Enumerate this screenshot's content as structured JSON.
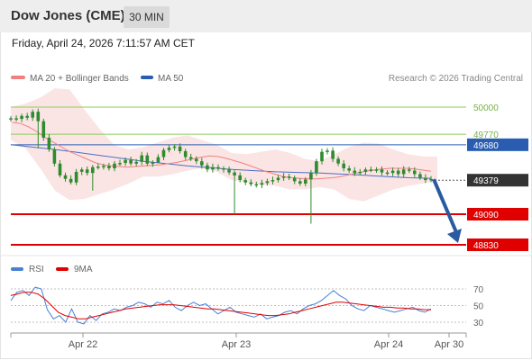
{
  "header": {
    "title": "Dow Jones (CME)",
    "timeframe": "30 MIN"
  },
  "datetime": "Friday, April 24, 2026 7:11:57 AM CET",
  "legend": {
    "ma20": "MA 20 + Bollinger Bands",
    "ma50": "MA 50",
    "credit": "Research © 2026 Trading Central"
  },
  "colors": {
    "candle": "#2e8b2e",
    "ma20": "#f08080",
    "bollinger_fill": "#fbe3e3",
    "ma50": "#4a6fc7",
    "resistance_green": "#8ccc5a",
    "pivot_blue": "#2a5db0",
    "support_red": "#e00000",
    "last_price": "#333333",
    "arrow": "#2a5aa0",
    "rsi": "#4a7fd4",
    "rsi_ma": "#e00000"
  },
  "chart_data": [
    {
      "type": "candlestick",
      "title": "",
      "x_ticks": [
        "Apr 22",
        "Apr 23",
        "Apr 24",
        "Apr 30"
      ],
      "price_range": [
        48800,
        50100
      ],
      "levels": [
        {
          "value": "50000",
          "kind": "resistance"
        },
        {
          "value": "49770",
          "kind": "resistance"
        },
        {
          "value": "49680",
          "kind": "pivot"
        },
        {
          "value": "49379",
          "kind": "last"
        },
        {
          "value": "49090",
          "kind": "support"
        },
        {
          "value": "48830",
          "kind": "support"
        }
      ],
      "close_series": [
        49905,
        49900,
        49925,
        49910,
        49960,
        49880,
        49740,
        49640,
        49520,
        49420,
        49390,
        49360,
        49450,
        49470,
        49440,
        49490,
        49495,
        49500,
        49480,
        49520,
        49525,
        49550,
        49520,
        49535,
        49590,
        49520,
        49530,
        49575,
        49635,
        49655,
        49665,
        49625,
        49575,
        49560,
        49540,
        49505,
        49470,
        49490,
        49480,
        49470,
        49445,
        49420,
        49380,
        49360,
        49345,
        49340,
        49355,
        49370,
        49380,
        49400,
        49410,
        49400,
        49370,
        49350,
        49385,
        49440,
        49540,
        49620,
        49630,
        49560,
        49520,
        49480,
        49460,
        49440,
        49450,
        49470,
        49465,
        49470,
        49445,
        49440,
        49460,
        49430,
        49470,
        49460,
        49430,
        49400,
        49380,
        49390
      ],
      "ma20_series": [
        49870,
        49860,
        49830,
        49790,
        49740,
        49700,
        49660,
        49620,
        49590,
        49560,
        49530,
        49510,
        49500,
        49495,
        49490,
        49495,
        49500,
        49505,
        49510,
        49520,
        49530,
        49545,
        49560,
        49575,
        49585,
        49580,
        49565,
        49545,
        49525,
        49500,
        49475,
        49450,
        49430,
        49410,
        49400,
        49395,
        49390,
        49390,
        49395,
        49400,
        49410,
        49425,
        49440,
        49455,
        49465,
        49475,
        49480,
        49480,
        49480,
        49475,
        49465,
        49455
      ],
      "ma50_series": [
        49680,
        49660,
        49640,
        49615,
        49590,
        49565,
        49540,
        49520,
        49500,
        49485,
        49470,
        49460,
        49450,
        49445,
        49440,
        49430,
        49420,
        49410,
        49400,
        49395
      ],
      "bollinger_upper": [
        50000,
        50030,
        50080,
        50160,
        50150,
        49980,
        49820,
        49680,
        49640,
        49660,
        49700,
        49740,
        49760,
        49720,
        49680,
        49610,
        49600,
        49620,
        49640,
        49610,
        49560,
        49540,
        49600,
        49660,
        49700,
        49690,
        49640,
        49600,
        49580,
        49580
      ],
      "bollinger_lower": [
        49720,
        49650,
        49480,
        49290,
        49210,
        49220,
        49260,
        49300,
        49350,
        49410,
        49410,
        49430,
        49460,
        49480,
        49450,
        49380,
        49360,
        49340,
        49330,
        49300,
        49300,
        49320,
        49300,
        49220,
        49200,
        49250,
        49300,
        49330,
        49350,
        49370
      ],
      "forecast": {
        "from": 49379,
        "to": 48830
      }
    },
    {
      "type": "line",
      "title": "",
      "legend": [
        "RSI",
        "9MA"
      ],
      "y_ticks": [
        "70",
        "50",
        "30"
      ],
      "ylim": [
        20,
        80
      ],
      "series": [
        {
          "name": "RSI",
          "values": [
            56,
            66,
            68,
            62,
            72,
            70,
            45,
            34,
            38,
            30,
            46,
            30,
            28,
            38,
            32,
            40,
            42,
            46,
            44,
            48,
            50,
            54,
            52,
            48,
            54,
            52,
            56,
            48,
            44,
            50,
            54,
            50,
            52,
            46,
            40,
            44,
            48,
            42,
            40,
            38,
            36,
            40,
            34,
            36,
            38,
            42,
            44,
            40,
            46,
            50,
            52,
            56,
            62,
            68,
            62,
            58,
            50,
            46,
            44,
            50,
            48,
            46,
            44,
            42,
            44,
            46,
            48,
            44,
            42,
            46
          ]
        },
        {
          "name": "9MA",
          "values": [
            62,
            64,
            66,
            66,
            64,
            58,
            50,
            42,
            38,
            36,
            34,
            34,
            36,
            38,
            40,
            42,
            44,
            46,
            47,
            48,
            49,
            50,
            51,
            51,
            51,
            50,
            49,
            48,
            47,
            46,
            46,
            45,
            44,
            43,
            42,
            41,
            40,
            39,
            38,
            38,
            39,
            40,
            42,
            44,
            46,
            48,
            50,
            52,
            54,
            54,
            53,
            52,
            51,
            50,
            49,
            48,
            48,
            47,
            47,
            46,
            46,
            45,
            45
          ]
        }
      ]
    }
  ]
}
